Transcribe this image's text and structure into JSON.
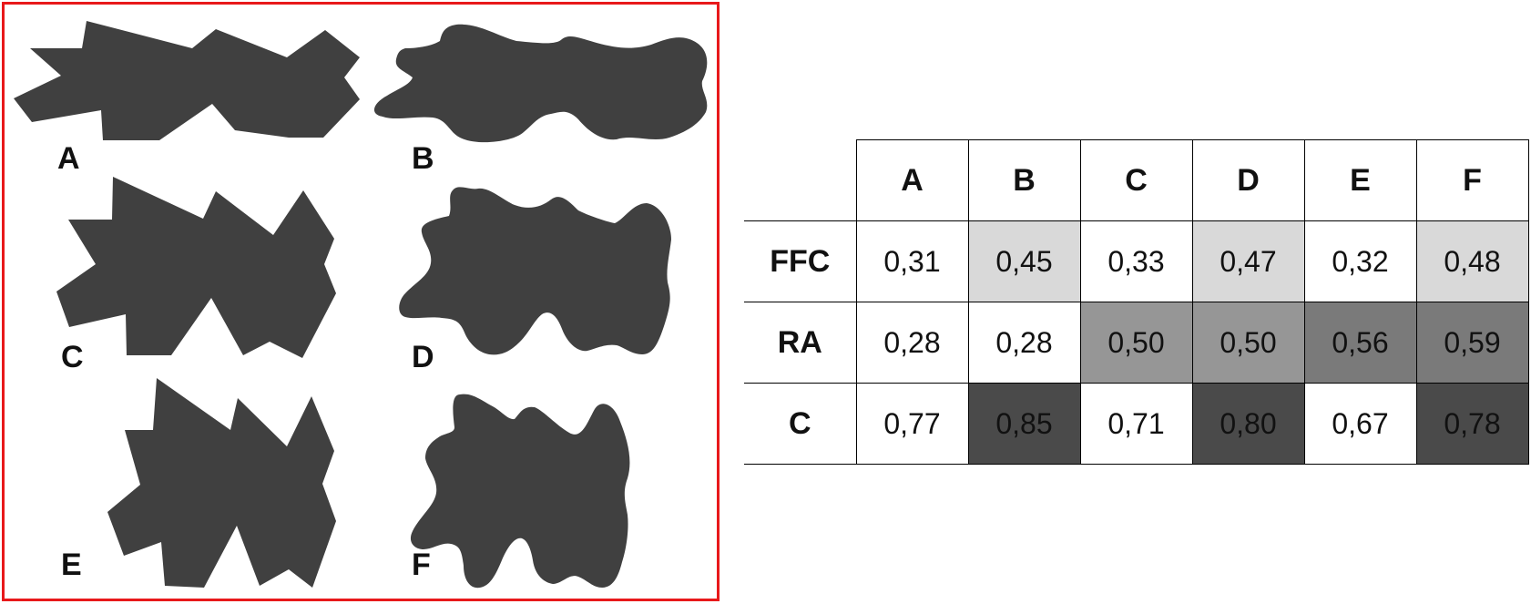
{
  "shapes": {
    "labels": [
      "A",
      "B",
      "C",
      "D",
      "E",
      "F"
    ],
    "shape_color": "#404040",
    "frame_color": "#e8191b"
  },
  "table": {
    "columns": [
      "A",
      "B",
      "C",
      "D",
      "E",
      "F"
    ],
    "rows": [
      {
        "label": "FFC",
        "cells": [
          {
            "value": "0,31",
            "bg": "#ffffff",
            "fg": "#111111"
          },
          {
            "value": "0,45",
            "bg": "#d9d9d9",
            "fg": "#111111"
          },
          {
            "value": "0,33",
            "bg": "#ffffff",
            "fg": "#111111"
          },
          {
            "value": "0,47",
            "bg": "#d9d9d9",
            "fg": "#111111"
          },
          {
            "value": "0,32",
            "bg": "#ffffff",
            "fg": "#111111"
          },
          {
            "value": "0,48",
            "bg": "#d9d9d9",
            "fg": "#111111"
          }
        ]
      },
      {
        "label": "RA",
        "cells": [
          {
            "value": "0,28",
            "bg": "#ffffff",
            "fg": "#111111"
          },
          {
            "value": "0,28",
            "bg": "#ffffff",
            "fg": "#111111"
          },
          {
            "value": "0,50",
            "bg": "#969696",
            "fg": "#111111"
          },
          {
            "value": "0,50",
            "bg": "#969696",
            "fg": "#111111"
          },
          {
            "value": "0,56",
            "bg": "#7a7a7a",
            "fg": "#111111"
          },
          {
            "value": "0,59",
            "bg": "#7a7a7a",
            "fg": "#111111"
          }
        ]
      },
      {
        "label": "C",
        "cells": [
          {
            "value": "0,77",
            "bg": "#ffffff",
            "fg": "#111111"
          },
          {
            "value": "0,85",
            "bg": "#4a4a4a",
            "fg": "#111111"
          },
          {
            "value": "0,71",
            "bg": "#ffffff",
            "fg": "#111111"
          },
          {
            "value": "0,80",
            "bg": "#4a4a4a",
            "fg": "#111111"
          },
          {
            "value": "0,67",
            "bg": "#ffffff",
            "fg": "#111111"
          },
          {
            "value": "0,78",
            "bg": "#4a4a4a",
            "fg": "#111111"
          }
        ]
      }
    ]
  }
}
